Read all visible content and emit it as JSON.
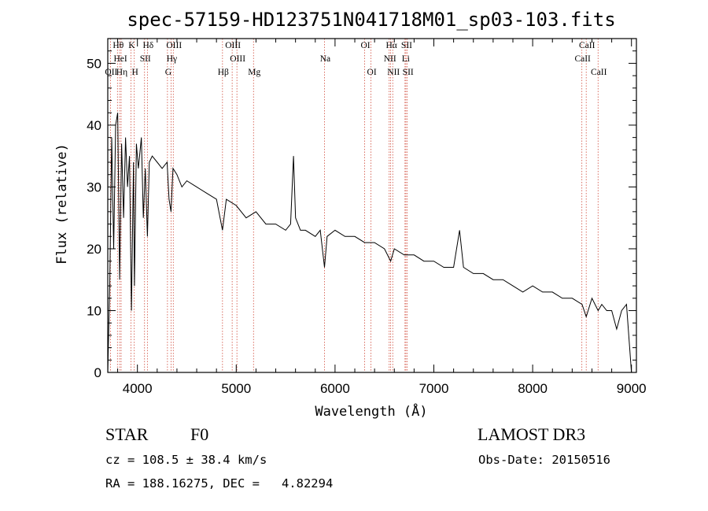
{
  "chart_data": {
    "type": "line",
    "title": "spec-57159-HD123751N041718M01_sp03-103.fits",
    "xlabel": "Wavelength (Å)",
    "ylabel": "Flux (relative)",
    "xlim": [
      3700,
      9050
    ],
    "ylim": [
      0,
      54
    ],
    "x_ticks": [
      4000,
      5000,
      6000,
      7000,
      8000,
      9000
    ],
    "y_ticks": [
      0,
      10,
      20,
      30,
      40,
      50
    ],
    "series": [
      {
        "name": "spectrum",
        "x": [
          3700,
          3720,
          3740,
          3760,
          3780,
          3800,
          3820,
          3840,
          3860,
          3880,
          3900,
          3920,
          3940,
          3960,
          3970,
          3990,
          4010,
          4040,
          4060,
          4080,
          4101,
          4120,
          4150,
          4200,
          4250,
          4300,
          4320,
          4340,
          4360,
          4400,
          4450,
          4500,
          4600,
          4700,
          4800,
          4861,
          4900,
          5000,
          5100,
          5200,
          5300,
          5400,
          5500,
          5550,
          5580,
          5600,
          5650,
          5700,
          5800,
          5850,
          5893,
          5920,
          6000,
          6100,
          6200,
          6300,
          6400,
          6500,
          6563,
          6600,
          6700,
          6800,
          6900,
          7000,
          7100,
          7200,
          7260,
          7300,
          7400,
          7500,
          7600,
          7700,
          7800,
          7900,
          8000,
          8100,
          8200,
          8300,
          8400,
          8500,
          8542,
          8600,
          8662,
          8700,
          8750,
          8800,
          8850,
          8900,
          8950,
          9000
        ],
        "y": [
          0,
          14,
          38,
          20,
          40,
          42,
          15,
          37,
          25,
          38,
          30,
          35,
          10,
          34,
          14,
          37,
          33,
          38,
          25,
          33,
          22,
          34,
          35,
          34,
          33,
          34,
          28,
          26,
          33,
          32,
          30,
          31,
          30,
          29,
          28,
          23,
          28,
          27,
          25,
          26,
          24,
          24,
          23,
          24,
          35,
          25,
          23,
          23,
          22,
          23,
          17,
          22,
          23,
          22,
          22,
          21,
          21,
          20,
          18,
          20,
          19,
          19,
          18,
          18,
          17,
          17,
          23,
          17,
          16,
          16,
          15,
          15,
          14,
          13,
          14,
          13,
          13,
          12,
          12,
          11,
          9,
          12,
          10,
          11,
          10,
          10,
          7,
          10,
          11,
          0
        ]
      }
    ],
    "lines": [
      {
        "label": "OII",
        "wl": 3727,
        "row": 3
      },
      {
        "label": "Hθ",
        "wl": 3798,
        "row": 1
      },
      {
        "label": "HeI",
        "wl": 3820,
        "row": 2
      },
      {
        "label": "Hη",
        "wl": 3835,
        "row": 3
      },
      {
        "label": "K",
        "wl": 3934,
        "row": 1
      },
      {
        "label": "SII",
        "wl": 4072,
        "row": 2
      },
      {
        "label": "H",
        "wl": 3968,
        "row": 3
      },
      {
        "label": "Hδ",
        "wl": 4101,
        "row": 1
      },
      {
        "label": "OIII",
        "wl": 4363,
        "row": 1
      },
      {
        "label": "Hγ",
        "wl": 4340,
        "row": 2
      },
      {
        "label": "G",
        "wl": 4304,
        "row": 3
      },
      {
        "label": "Hβ",
        "wl": 4861,
        "row": 3
      },
      {
        "label": "OIII",
        "wl": 4959,
        "row": 1
      },
      {
        "label": "OIII",
        "wl": 5007,
        "row": 2
      },
      {
        "label": "Mg",
        "wl": 5175,
        "row": 3
      },
      {
        "label": "Na",
        "wl": 5893,
        "row": 2
      },
      {
        "label": "OI",
        "wl": 6300,
        "row": 1
      },
      {
        "label": "OI",
        "wl": 6364,
        "row": 3
      },
      {
        "label": "Hα",
        "wl": 6563,
        "row": 1
      },
      {
        "label": "NII",
        "wl": 6548,
        "row": 2
      },
      {
        "label": "NII",
        "wl": 6584,
        "row": 3
      },
      {
        "label": "SII",
        "wl": 6717,
        "row": 1
      },
      {
        "label": "Li",
        "wl": 6708,
        "row": 2
      },
      {
        "label": "SII",
        "wl": 6731,
        "row": 3
      },
      {
        "label": "CaII",
        "wl": 8542,
        "row": 1
      },
      {
        "label": "CaII",
        "wl": 8498,
        "row": 2
      },
      {
        "label": "CaII",
        "wl": 8662,
        "row": 3
      }
    ]
  },
  "info": {
    "object_class": "STAR",
    "subclass": "F0",
    "survey": "LAMOST DR3",
    "redshift": "cz = 108.5 ± 38.4 km/s",
    "obs_date": "Obs-Date: 20150516",
    "coords": "RA = 188.16275, DEC =   4.82294"
  },
  "colors": {
    "spectrum": "#000000",
    "marker_lines": "#d04a3a",
    "axes": "#000000"
  }
}
